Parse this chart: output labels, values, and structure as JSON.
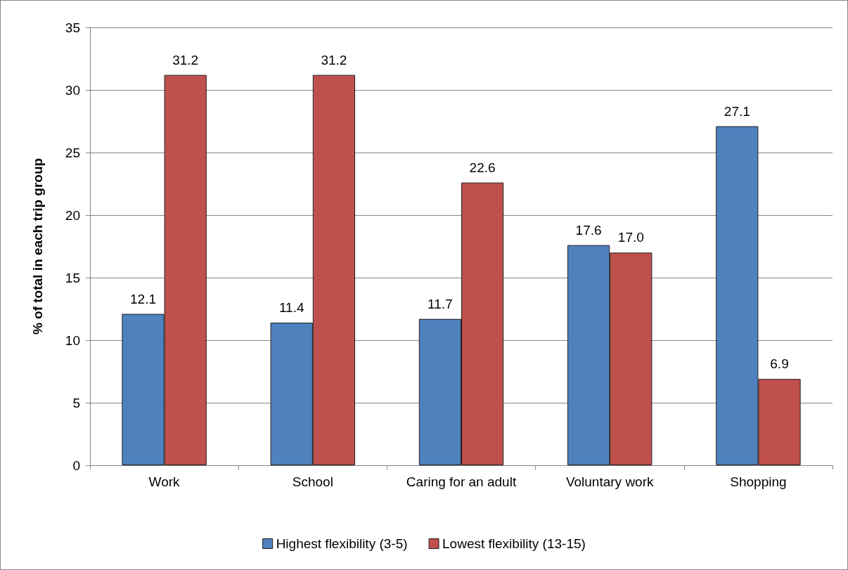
{
  "chart_data": {
    "type": "bar",
    "ylabel": "% of total in each trip group",
    "categories": [
      "Work",
      "School",
      "Caring for an adult",
      "Voluntary work",
      "Shopping"
    ],
    "series": [
      {
        "name": "Highest flexibility (3-5)",
        "color": "#4f81bd",
        "values": [
          12.1,
          11.4,
          11.7,
          17.6,
          27.1
        ],
        "value_labels": [
          "12.1",
          "11.4",
          "11.7",
          "17.6",
          "27.1"
        ]
      },
      {
        "name": "Lowest flexibility (13-15)",
        "color": "#c0504d",
        "values": [
          31.2,
          31.2,
          22.6,
          17.0,
          6.9
        ],
        "value_labels": [
          "31.2",
          "31.2",
          "22.6",
          "17.0",
          "6.9"
        ]
      }
    ],
    "ylim": [
      0,
      35
    ],
    "yticks": [
      0,
      5,
      10,
      15,
      20,
      25,
      30,
      35
    ],
    "grid": "y",
    "legend": "bottom"
  }
}
